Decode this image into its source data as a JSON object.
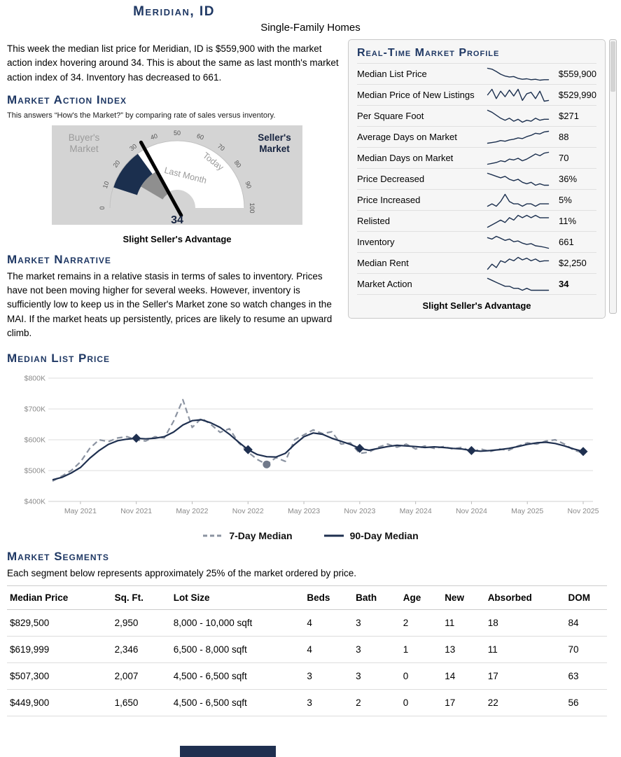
{
  "header": {
    "title": "Meridian, ID",
    "subtitle": "Single-Family Homes"
  },
  "intro": "This week the median list price for Meridian, ID is $559,900 with the market action index hovering around 34. This is about the same as last month's market action index of 34. Inventory has decreased to 661.",
  "market_action": {
    "heading": "Market Action Index",
    "explainer": "This answers “How's the Market?” by comparing rate of sales versus inventory.",
    "gauge": {
      "value": 34,
      "last_month": 34,
      "min": 0,
      "max": 100,
      "ticks": [
        0,
        10,
        20,
        30,
        40,
        50,
        60,
        70,
        80,
        90,
        100
      ],
      "left_label": "Buyer's Market",
      "right_label": "Seller's Market",
      "band_labels": [
        "Last Month",
        "Today"
      ],
      "caption": "Slight Seller's Advantage",
      "navy_color": "#1b2f4e",
      "gray_color": "#8f8f8f"
    }
  },
  "profile": {
    "heading": "Real-Time Market Profile",
    "rows": [
      {
        "label": "Median List Price",
        "value": "$559,900",
        "bold": false,
        "spark": [
          585,
          583,
          578,
          572,
          568,
          566,
          567,
          563,
          561,
          562,
          560,
          561,
          559,
          560,
          560
        ]
      },
      {
        "label": "Median Price of New Listings",
        "value": "$529,990",
        "bold": false,
        "spark": [
          545,
          560,
          535,
          555,
          540,
          558,
          542,
          560,
          530,
          548,
          552,
          535,
          555,
          528,
          530
        ]
      },
      {
        "label": "Per Square Foot",
        "value": "$271",
        "bold": false,
        "spark": [
          280,
          278,
          275,
          272,
          270,
          272,
          269,
          271,
          268,
          270,
          269,
          272,
          270,
          271,
          271
        ]
      },
      {
        "label": "Average Days on Market",
        "value": "88",
        "bold": false,
        "spark": [
          70,
          71,
          72,
          74,
          73,
          75,
          76,
          78,
          77,
          80,
          82,
          85,
          84,
          87,
          88
        ]
      },
      {
        "label": "Median Days on Market",
        "value": "70",
        "bold": false,
        "spark": [
          56,
          57,
          58,
          60,
          59,
          62,
          61,
          63,
          60,
          62,
          65,
          68,
          66,
          69,
          70
        ]
      },
      {
        "label": "Price Decreased",
        "value": "36%",
        "bold": false,
        "spark": [
          44,
          43,
          42,
          41,
          42,
          40,
          39,
          40,
          38,
          37,
          38,
          36,
          37,
          36,
          36
        ]
      },
      {
        "label": "Price Increased",
        "value": "5%",
        "bold": false,
        "spark": [
          4,
          5,
          4,
          6,
          9,
          6,
          5,
          5,
          4,
          5,
          5,
          4,
          5,
          5,
          5
        ]
      },
      {
        "label": "Relisted",
        "value": "11%",
        "bold": false,
        "spark": [
          7,
          8,
          9,
          10,
          9,
          11,
          10,
          12,
          11,
          12,
          11,
          12,
          11,
          11,
          11
        ]
      },
      {
        "label": "Inventory",
        "value": "661",
        "bold": false,
        "spark": [
          700,
          695,
          705,
          698,
          690,
          695,
          685,
          688,
          680,
          675,
          678,
          670,
          668,
          665,
          661
        ]
      },
      {
        "label": "Median Rent",
        "value": "$2,250",
        "bold": false,
        "spark": [
          2200,
          2230,
          2210,
          2250,
          2240,
          2260,
          2250,
          2270,
          2255,
          2265,
          2250,
          2260,
          2245,
          2250,
          2250
        ]
      },
      {
        "label": "Market Action",
        "value": "34",
        "bold": true,
        "spark": [
          40,
          39,
          38,
          37,
          36,
          36,
          35,
          35,
          34,
          35,
          34,
          34,
          34,
          34,
          34
        ]
      }
    ],
    "footer": "Slight Seller's Advantage"
  },
  "narrative": {
    "heading": "Market Narrative",
    "text": "The market remains in a relative stasis in terms of sales to inventory. Prices have not been moving higher for several weeks. However, inventory is sufficiently low to keep us in the Seller's Market zone so watch changes in the MAI. If the market heats up persistently, prices are likely to resume an upward climb."
  },
  "chart_data": {
    "type": "line",
    "title": "Median List Price",
    "unit": "USD thousands",
    "ylim": [
      400,
      800
    ],
    "yticks": [
      400,
      500,
      600,
      700,
      800
    ],
    "ytick_labels": [
      "$400K",
      "$500K",
      "$600K",
      "$700K",
      "$800K"
    ],
    "x_tick_labels": [
      "May 2021",
      "Nov 2021",
      "May 2022",
      "Nov 2022",
      "May 2023",
      "Nov 2023",
      "May 2024",
      "Nov 2024",
      "May 2025",
      "Nov 2025"
    ],
    "x_tick_indices": [
      3,
      9,
      15,
      21,
      27,
      33,
      39,
      45,
      51,
      57
    ],
    "grid": "horizontal",
    "legend_position": "bottom",
    "series": [
      {
        "name": "7-Day Median",
        "style": "dashed",
        "color": "#8b93a1",
        "values": [
          466,
          482,
          500,
          528,
          572,
          600,
          594,
          606,
          610,
          600,
          596,
          610,
          606,
          660,
          730,
          640,
          670,
          650,
          624,
          636,
          590,
          560,
          536,
          520,
          542,
          530,
          600,
          616,
          632,
          620,
          626,
          586,
          590,
          556,
          560,
          576,
          586,
          576,
          586,
          570,
          580,
          572,
          578,
          570,
          576,
          560,
          570,
          562,
          570,
          566,
          580,
          590,
          586,
          596,
          600,
          586,
          566,
          558
        ]
      },
      {
        "name": "90-Day Median",
        "style": "solid",
        "color": "#1f3050",
        "values": [
          470,
          478,
          492,
          510,
          540,
          565,
          585,
          597,
          602,
          605,
          603,
          605,
          610,
          625,
          648,
          662,
          665,
          655,
          640,
          618,
          592,
          568,
          552,
          545,
          544,
          556,
          585,
          610,
          622,
          618,
          605,
          595,
          585,
          572,
          566,
          572,
          578,
          582,
          580,
          578,
          575,
          577,
          575,
          572,
          570,
          565,
          563,
          565,
          568,
          572,
          578,
          585,
          590,
          592,
          588,
          580,
          570,
          562
        ]
      }
    ],
    "markers": {
      "diamond_series": "90-Day Median",
      "diamond_indices": [
        9,
        21,
        33,
        45,
        57
      ],
      "circle_series": "7-Day Median",
      "circle_index": 23
    }
  },
  "segments": {
    "heading": "Market Segments",
    "explainer": "Each segment below represents approximately 25% of the market ordered by price.",
    "columns": [
      "Median Price",
      "Sq. Ft.",
      "Lot Size",
      "Beds",
      "Bath",
      "Age",
      "New",
      "Absorbed",
      "DOM"
    ],
    "rows": [
      [
        "$829,500",
        "2,950",
        "8,000 - 10,000 sqft",
        "4",
        "3",
        "2",
        "11",
        "18",
        "84"
      ],
      [
        "$619,999",
        "2,346",
        "6,500 - 8,000 sqft",
        "4",
        "3",
        "1",
        "13",
        "11",
        "70"
      ],
      [
        "$507,300",
        "2,007",
        "4,500 - 6,500 sqft",
        "3",
        "3",
        "0",
        "14",
        "17",
        "63"
      ],
      [
        "$449,900",
        "1,650",
        "4,500 - 6,500 sqft",
        "3",
        "2",
        "0",
        "17",
        "22",
        "56"
      ]
    ]
  }
}
